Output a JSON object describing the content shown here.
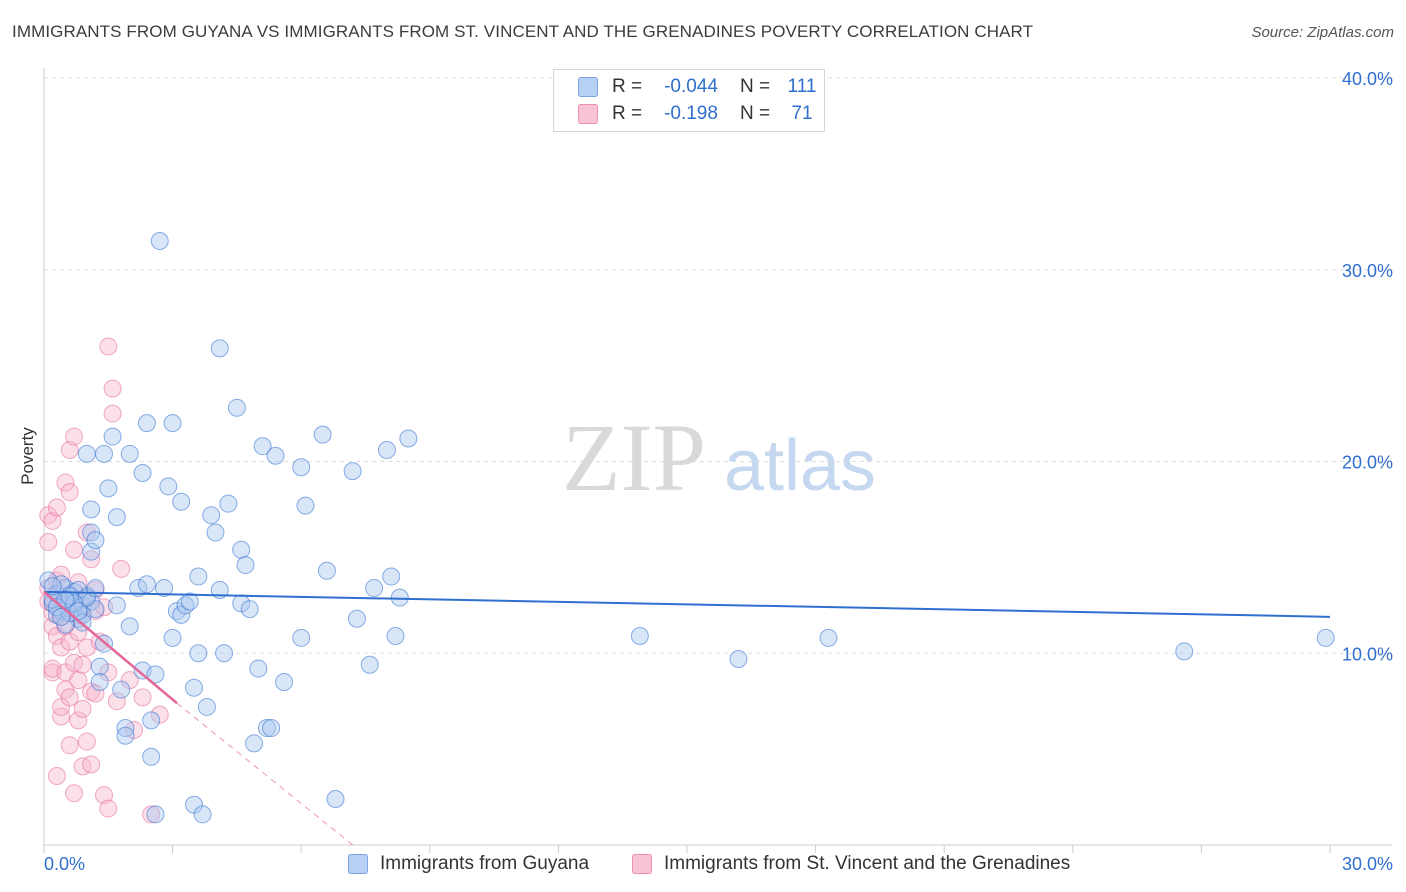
{
  "title": "IMMIGRANTS FROM GUYANA VS IMMIGRANTS FROM ST. VINCENT AND THE GRENADINES POVERTY CORRELATION CHART",
  "source": "Source: ZipAtlas.com",
  "watermark": {
    "zip": "ZIP",
    "atlas": "atlas"
  },
  "legend": {
    "r_label": "R =",
    "n_label": "N =",
    "rows": [
      {
        "r": "-0.044",
        "n": "111"
      },
      {
        "r": "-0.198",
        "n": "71"
      }
    ]
  },
  "colors": {
    "blue": "#2f6fcf",
    "blue_fill": "#a9c8f0",
    "pink": "#e5679a",
    "pink_fill": "#f7b9cf",
    "grid": "#dddddd"
  },
  "chart_data": {
    "type": "scatter",
    "title": "IMMIGRANTS FROM GUYANA VS IMMIGRANTS FROM ST. VINCENT AND THE GRENADINES POVERTY CORRELATION CHART",
    "xlabel": "",
    "ylabel": "Poverty",
    "xlim": [
      0,
      30
    ],
    "ylim": [
      0,
      40
    ],
    "x_tick_labels": [
      "0.0%",
      "30.0%"
    ],
    "y_tick_labels": [
      "10.0%",
      "20.0%",
      "30.0%",
      "40.0%"
    ],
    "y_ticks": [
      10,
      20,
      30,
      40
    ],
    "series": [
      {
        "name": "Immigrants from Guyana",
        "color": "blue",
        "trend": {
          "x": [
            0,
            30
          ],
          "y": [
            13.2,
            11.9
          ]
        },
        "points": [
          [
            0.1,
            13.8
          ],
          [
            0.2,
            12.6
          ],
          [
            0.3,
            13.1
          ],
          [
            0.4,
            12.2
          ],
          [
            0.5,
            13.4
          ],
          [
            0.6,
            12.9
          ],
          [
            0.7,
            12.4
          ],
          [
            0.8,
            11.8
          ],
          [
            0.9,
            12.5
          ],
          [
            1.0,
            13.0
          ],
          [
            0.3,
            12.0
          ],
          [
            0.5,
            11.5
          ],
          [
            0.7,
            13.2
          ],
          [
            1.1,
            12.7
          ],
          [
            1.2,
            12.3
          ],
          [
            0.4,
            13.6
          ],
          [
            0.6,
            12.1
          ],
          [
            0.8,
            13.3
          ],
          [
            0.2,
            12.8
          ],
          [
            0.9,
            12.0
          ],
          [
            1.0,
            20.4
          ],
          [
            1.1,
            17.5
          ],
          [
            1.1,
            16.3
          ],
          [
            1.1,
            15.3
          ],
          [
            1.2,
            15.9
          ],
          [
            1.3,
            9.3
          ],
          [
            1.3,
            8.5
          ],
          [
            1.4,
            10.5
          ],
          [
            1.4,
            20.4
          ],
          [
            1.5,
            18.6
          ],
          [
            1.6,
            21.3
          ],
          [
            1.7,
            17.1
          ],
          [
            1.7,
            12.5
          ],
          [
            1.8,
            8.1
          ],
          [
            1.9,
            6.1
          ],
          [
            1.9,
            5.7
          ],
          [
            2.0,
            11.4
          ],
          [
            2.0,
            20.4
          ],
          [
            2.2,
            13.4
          ],
          [
            2.3,
            19.4
          ],
          [
            2.3,
            9.1
          ],
          [
            2.4,
            22.0
          ],
          [
            2.4,
            13.6
          ],
          [
            2.5,
            6.5
          ],
          [
            2.5,
            4.6
          ],
          [
            2.6,
            8.9
          ],
          [
            2.6,
            1.6
          ],
          [
            2.7,
            31.5
          ],
          [
            2.8,
            13.4
          ],
          [
            2.9,
            18.7
          ],
          [
            3.0,
            22.0
          ],
          [
            3.0,
            10.8
          ],
          [
            3.1,
            12.2
          ],
          [
            3.2,
            17.9
          ],
          [
            3.2,
            12.0
          ],
          [
            3.3,
            12.5
          ],
          [
            3.4,
            12.7
          ],
          [
            3.5,
            8.2
          ],
          [
            3.5,
            2.1
          ],
          [
            3.6,
            10.0
          ],
          [
            3.6,
            14.0
          ],
          [
            3.7,
            1.6
          ],
          [
            3.8,
            7.2
          ],
          [
            3.9,
            17.2
          ],
          [
            4.0,
            16.3
          ],
          [
            4.1,
            25.9
          ],
          [
            4.1,
            13.3
          ],
          [
            4.2,
            10.0
          ],
          [
            4.3,
            17.8
          ],
          [
            4.5,
            22.8
          ],
          [
            4.6,
            12.6
          ],
          [
            4.6,
            15.4
          ],
          [
            4.7,
            14.6
          ],
          [
            4.8,
            12.3
          ],
          [
            4.9,
            5.3
          ],
          [
            5.0,
            9.2
          ],
          [
            5.1,
            20.8
          ],
          [
            5.2,
            6.1
          ],
          [
            5.3,
            6.1
          ],
          [
            5.4,
            20.3
          ],
          [
            5.6,
            8.5
          ],
          [
            6.0,
            19.7
          ],
          [
            6.0,
            10.8
          ],
          [
            6.1,
            17.7
          ],
          [
            6.5,
            21.4
          ],
          [
            6.6,
            14.3
          ],
          [
            6.8,
            2.4
          ],
          [
            7.2,
            19.5
          ],
          [
            7.3,
            11.8
          ],
          [
            7.6,
            9.4
          ],
          [
            7.7,
            13.4
          ],
          [
            8.0,
            20.6
          ],
          [
            8.1,
            14.0
          ],
          [
            8.2,
            10.9
          ],
          [
            8.3,
            12.9
          ],
          [
            8.5,
            21.2
          ],
          [
            13.9,
            10.9
          ],
          [
            16.2,
            9.7
          ],
          [
            18.3,
            10.8
          ],
          [
            26.6,
            10.1
          ],
          [
            29.9,
            10.8
          ],
          [
            0.3,
            12.4
          ],
          [
            0.6,
            13.0
          ],
          [
            0.9,
            11.6
          ],
          [
            1.0,
            12.9
          ],
          [
            0.4,
            11.9
          ],
          [
            0.7,
            12.6
          ],
          [
            0.2,
            13.5
          ],
          [
            0.5,
            12.8
          ],
          [
            1.2,
            13.4
          ],
          [
            0.8,
            12.2
          ]
        ]
      },
      {
        "name": "Immigrants from St. Vincent and the Grenadines",
        "color": "pink",
        "trend": {
          "x": [
            0,
            3.1
          ],
          "y": [
            13.2,
            7.4
          ]
        },
        "trend_dashed": {
          "x": [
            3.1,
            7.2
          ],
          "y": [
            7.4,
            0.0
          ]
        },
        "points": [
          [
            0.1,
            17.2
          ],
          [
            0.1,
            15.8
          ],
          [
            0.1,
            13.4
          ],
          [
            0.1,
            12.7
          ],
          [
            0.2,
            16.9
          ],
          [
            0.2,
            12.1
          ],
          [
            0.2,
            11.4
          ],
          [
            0.2,
            9.0
          ],
          [
            0.2,
            9.2
          ],
          [
            0.3,
            17.6
          ],
          [
            0.3,
            13.8
          ],
          [
            0.3,
            10.9
          ],
          [
            0.3,
            3.6
          ],
          [
            0.4,
            14.1
          ],
          [
            0.4,
            11.9
          ],
          [
            0.4,
            10.3
          ],
          [
            0.4,
            6.7
          ],
          [
            0.4,
            7.2
          ],
          [
            0.5,
            18.9
          ],
          [
            0.5,
            12.8
          ],
          [
            0.5,
            11.4
          ],
          [
            0.5,
            9.0
          ],
          [
            0.5,
            8.1
          ],
          [
            0.6,
            20.6
          ],
          [
            0.6,
            18.4
          ],
          [
            0.6,
            13.1
          ],
          [
            0.6,
            10.6
          ],
          [
            0.6,
            7.7
          ],
          [
            0.6,
            5.2
          ],
          [
            0.7,
            15.4
          ],
          [
            0.7,
            21.3
          ],
          [
            0.7,
            12.1
          ],
          [
            0.7,
            9.5
          ],
          [
            0.7,
            2.7
          ],
          [
            0.8,
            13.7
          ],
          [
            0.8,
            11.1
          ],
          [
            0.8,
            8.6
          ],
          [
            0.8,
            6.5
          ],
          [
            0.9,
            12.4
          ],
          [
            0.9,
            9.4
          ],
          [
            0.9,
            7.1
          ],
          [
            0.9,
            4.1
          ],
          [
            1.0,
            16.3
          ],
          [
            1.0,
            12.9
          ],
          [
            1.0,
            10.3
          ],
          [
            1.0,
            5.4
          ],
          [
            1.1,
            14.9
          ],
          [
            1.1,
            8.0
          ],
          [
            1.1,
            4.2
          ],
          [
            1.2,
            13.3
          ],
          [
            1.2,
            12.2
          ],
          [
            1.2,
            7.9
          ],
          [
            1.3,
            10.6
          ],
          [
            1.4,
            12.4
          ],
          [
            1.4,
            2.6
          ],
          [
            1.5,
            26.0
          ],
          [
            1.5,
            9.0
          ],
          [
            1.5,
            1.9
          ],
          [
            1.6,
            23.8
          ],
          [
            1.6,
            22.5
          ],
          [
            1.7,
            7.5
          ],
          [
            1.8,
            14.4
          ],
          [
            2.0,
            8.6
          ],
          [
            2.1,
            6.0
          ],
          [
            2.3,
            7.7
          ],
          [
            2.5,
            1.6
          ],
          [
            2.7,
            6.8
          ],
          [
            0.3,
            13.0
          ],
          [
            0.5,
            12.5
          ],
          [
            0.8,
            12.0
          ],
          [
            0.2,
            12.6
          ]
        ]
      }
    ]
  },
  "bottom_legend": [
    "Immigrants from Guyana",
    "Immigrants from St. Vincent and the Grenadines"
  ]
}
